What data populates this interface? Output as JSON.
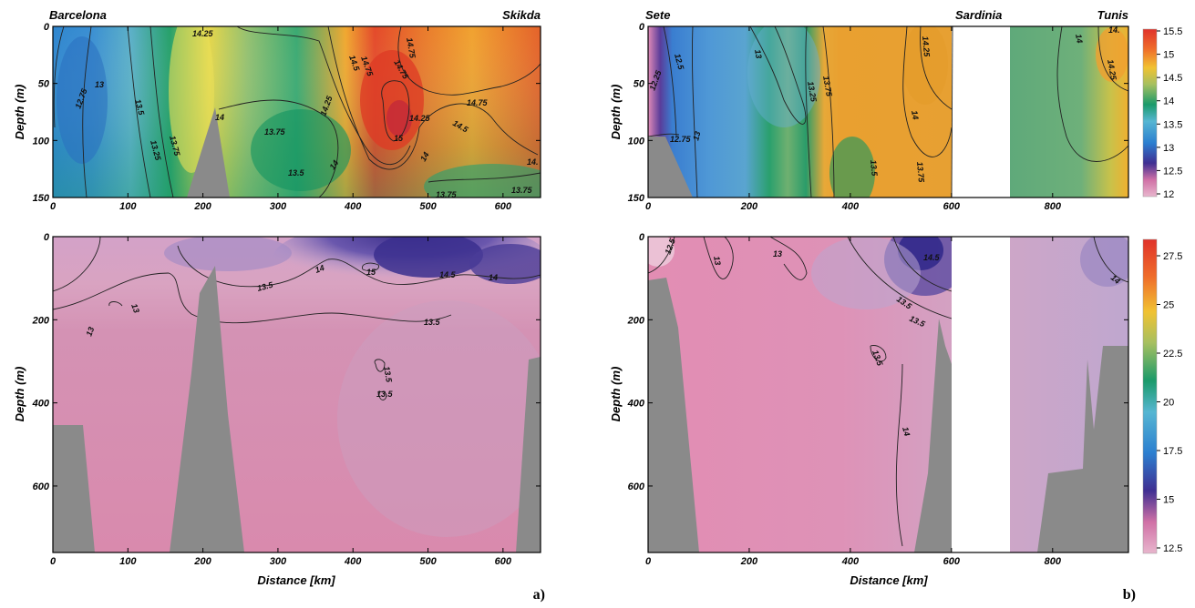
{
  "colors": {
    "bathymetry": "#8a8a8a",
    "gap": "#ffffff",
    "temperature_scale": [
      "#d98bb0",
      "#5a3c9a",
      "#3d7dc6",
      "#1b9a6a",
      "#f2c232",
      "#e8412a"
    ],
    "salinity_scale": [
      "#e58cb0",
      "#5d4ba0",
      "#2f7fd1",
      "#1d9f6a",
      "#f0b030",
      "#e04025"
    ]
  },
  "panel_letters": {
    "a": "a)",
    "b": "b)"
  },
  "chart_data": [
    {
      "id": "a-top",
      "type": "heatmap",
      "place_left": "Barcelona",
      "place_right": "Skikda",
      "ylabel": "Depth (m)",
      "xlabel": "",
      "xlim": [
        0,
        650
      ],
      "ylim": [
        0,
        150
      ],
      "xticks": [
        "0",
        "100",
        "200",
        "300",
        "400",
        "500",
        "600"
      ],
      "yticks": [
        "0",
        "50",
        "100",
        "150"
      ],
      "contour_labels": [
        "13",
        "12.75",
        "13.5",
        "13.25",
        "13.75",
        "14.25",
        "14",
        "13.75",
        "13.5",
        "14",
        "14.25",
        "14.5",
        "14.75",
        "14.75",
        "14.75",
        "15",
        "14.25",
        "14.5",
        "14.75",
        "14",
        "13.75",
        "13.75",
        "14."
      ]
    },
    {
      "id": "a-bottom",
      "type": "heatmap",
      "ylabel": "Depth (m)",
      "xlabel": "Distance [km]",
      "xlim": [
        0,
        650
      ],
      "ylim": [
        0,
        760
      ],
      "xticks": [
        "0",
        "100",
        "200",
        "300",
        "400",
        "500",
        "600"
      ],
      "yticks": [
        "0",
        "200",
        "400",
        "600"
      ],
      "contour_labels": [
        "13",
        "13",
        "13.5",
        "14",
        "15",
        "14.5",
        "14",
        "13.5",
        "13.5",
        "13.5"
      ]
    },
    {
      "id": "b-top",
      "type": "heatmap",
      "place_left": "Sete",
      "place_mid": "Sardinia",
      "place_right": "Tunis",
      "ylabel": "Depth (m)",
      "xlabel": "",
      "xlim": [
        0,
        950
      ],
      "ylim": [
        0,
        150
      ],
      "xticks": [
        "0",
        "200",
        "400",
        "600",
        "800"
      ],
      "yticks": [
        "0",
        "50",
        "100",
        "150"
      ],
      "colorbar": [
        "15.5",
        "15",
        "14.5",
        "14",
        "13.5",
        "13",
        "12.5",
        "12"
      ],
      "contour_labels": [
        "12.5",
        "12.25",
        "12.75",
        "13",
        "13",
        "13.25",
        "13.75",
        "14.25",
        "14",
        "13.5",
        "13.75",
        "14",
        "14.25",
        "14."
      ]
    },
    {
      "id": "b-bottom",
      "type": "heatmap",
      "ylabel": "Depth (m)",
      "xlabel": "Distance [km]",
      "xlim": [
        0,
        950
      ],
      "ylim": [
        0,
        760
      ],
      "xticks": [
        "0",
        "200",
        "400",
        "600",
        "800"
      ],
      "yticks": [
        "0",
        "200",
        "400",
        "600"
      ],
      "colorbar": [
        "27.5",
        "25",
        "22.5",
        "20",
        "17.5",
        "15",
        "12.5"
      ],
      "contour_labels": [
        "12.5",
        "13",
        "13",
        "14.5",
        "13.5",
        "13.5",
        "13.5",
        "14"
      ]
    }
  ]
}
